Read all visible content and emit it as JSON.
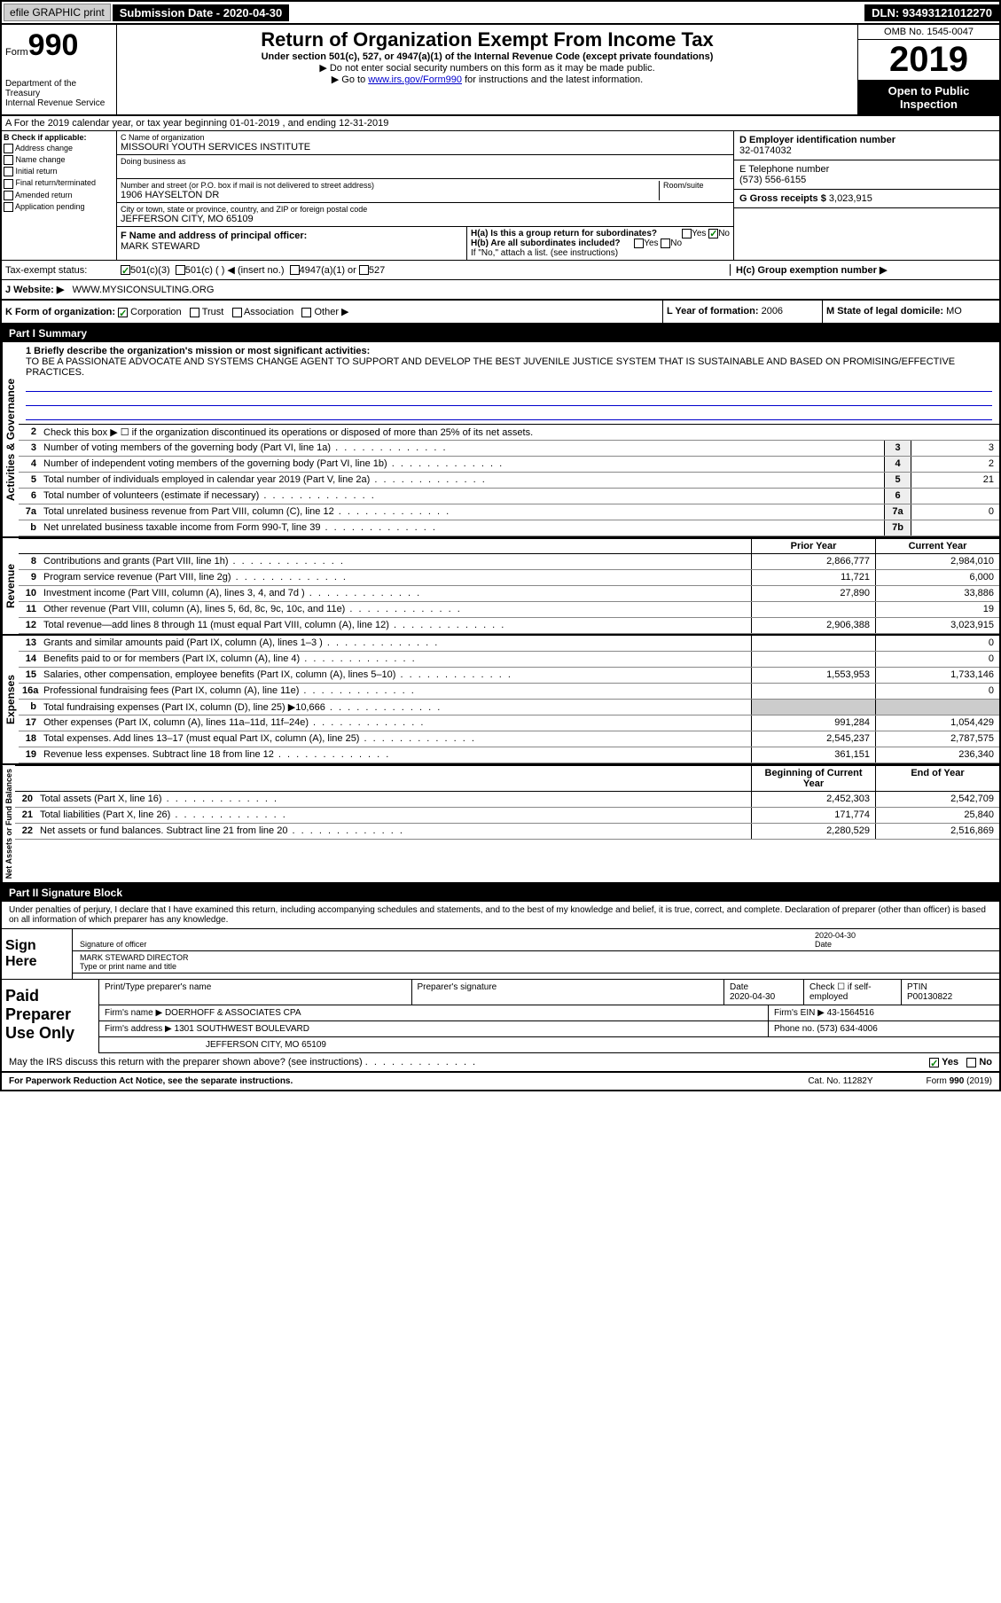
{
  "topbar": {
    "efile": "efile GRAPHIC print",
    "submission": "Submission Date - 2020-04-30",
    "dln": "DLN: 93493121012270"
  },
  "header": {
    "form_prefix": "Form",
    "form_num": "990",
    "dept": "Department of the Treasury\nInternal Revenue Service",
    "title": "Return of Organization Exempt From Income Tax",
    "subtitle": "Under section 501(c), 527, or 4947(a)(1) of the Internal Revenue Code (except private foundations)",
    "note1": "▶ Do not enter social security numbers on this form as it may be made public.",
    "note2": "▶ Go to www.irs.gov/Form990 for instructions and the latest information.",
    "link": "www.irs.gov/Form990",
    "omb": "OMB No. 1545-0047",
    "year": "2019",
    "open": "Open to Public Inspection"
  },
  "period": "A For the 2019 calendar year, or tax year beginning 01-01-2019   , and ending 12-31-2019",
  "sectionB": {
    "hdr": "B Check if applicable:",
    "opts": [
      "Address change",
      "Name change",
      "Initial return",
      "Final return/terminated",
      "Amended return",
      "Application pending"
    ]
  },
  "sectionC": {
    "name_lbl": "C Name of organization",
    "name": "MISSOURI YOUTH SERVICES INSTITUTE",
    "dba_lbl": "Doing business as",
    "addr_lbl": "Number and street (or P.O. box if mail is not delivered to street address)",
    "room_lbl": "Room/suite",
    "addr": "1906 HAYSELTON DR",
    "city_lbl": "City or town, state or province, country, and ZIP or foreign postal code",
    "city": "JEFFERSON CITY, MO  65109"
  },
  "sectionD": {
    "lbl": "D Employer identification number",
    "val": "32-0174032"
  },
  "sectionE": {
    "lbl": "E Telephone number",
    "val": "(573) 556-6155"
  },
  "sectionG": {
    "lbl": "G Gross receipts $",
    "val": "3,023,915"
  },
  "sectionF": {
    "lbl": "F Name and address of principal officer:",
    "val": "MARK STEWARD"
  },
  "sectionH": {
    "a": "H(a)  Is this a group return for subordinates?",
    "b": "H(b)  Are all subordinates included?",
    "b_note": "If \"No,\" attach a list. (see instructions)",
    "c": "H(c)  Group exemption number ▶",
    "yes": "Yes",
    "no": "No"
  },
  "taxExempt": {
    "lbl": "Tax-exempt status:",
    "o1": "501(c)(3)",
    "o2": "501(c) (   ) ◀ (insert no.)",
    "o3": "4947(a)(1) or",
    "o4": "527"
  },
  "sectionJ": {
    "lbl": "J    Website: ▶",
    "val": "WWW.MYSICONSULTING.ORG"
  },
  "sectionK": {
    "lbl": "K Form of organization:",
    "opts": [
      "Corporation",
      "Trust",
      "Association",
      "Other ▶"
    ],
    "l_lbl": "L Year of formation:",
    "l_val": "2006",
    "m_lbl": "M State of legal domicile:",
    "m_val": "MO"
  },
  "part1": {
    "hdr": "Part I      Summary",
    "l1_lbl": "1  Briefly describe the organization's mission or most significant activities:",
    "l1_txt": "TO BE A PASSIONATE ADVOCATE AND SYSTEMS CHANGE AGENT TO SUPPORT AND DEVELOP THE BEST JUVENILE JUSTICE SYSTEM THAT IS SUSTAINABLE AND BASED ON PROMISING/EFFECTIVE PRACTICES.",
    "l2": "Check this box ▶ ☐  if the organization discontinued its operations or disposed of more than 25% of its net assets.",
    "rows_ag": [
      {
        "n": "3",
        "d": "Number of voting members of the governing body (Part VI, line 1a)",
        "b": "3",
        "v": "3"
      },
      {
        "n": "4",
        "d": "Number of independent voting members of the governing body (Part VI, line 1b)",
        "b": "4",
        "v": "2"
      },
      {
        "n": "5",
        "d": "Total number of individuals employed in calendar year 2019 (Part V, line 2a)",
        "b": "5",
        "v": "21"
      },
      {
        "n": "6",
        "d": "Total number of volunteers (estimate if necessary)",
        "b": "6",
        "v": ""
      },
      {
        "n": "7a",
        "d": "Total unrelated business revenue from Part VIII, column (C), line 12",
        "b": "7a",
        "v": "0"
      },
      {
        "n": "b",
        "d": "Net unrelated business taxable income from Form 990-T, line 39",
        "b": "7b",
        "v": ""
      }
    ],
    "col_prior": "Prior Year",
    "col_curr": "Current Year",
    "rows_rev": [
      {
        "n": "8",
        "d": "Contributions and grants (Part VIII, line 1h)",
        "p": "2,866,777",
        "c": "2,984,010"
      },
      {
        "n": "9",
        "d": "Program service revenue (Part VIII, line 2g)",
        "p": "11,721",
        "c": "6,000"
      },
      {
        "n": "10",
        "d": "Investment income (Part VIII, column (A), lines 3, 4, and 7d )",
        "p": "27,890",
        "c": "33,886"
      },
      {
        "n": "11",
        "d": "Other revenue (Part VIII, column (A), lines 5, 6d, 8c, 9c, 10c, and 11e)",
        "p": "",
        "c": "19"
      },
      {
        "n": "12",
        "d": "Total revenue—add lines 8 through 11 (must equal Part VIII, column (A), line 12)",
        "p": "2,906,388",
        "c": "3,023,915"
      }
    ],
    "rows_exp": [
      {
        "n": "13",
        "d": "Grants and similar amounts paid (Part IX, column (A), lines 1–3 )",
        "p": "",
        "c": "0"
      },
      {
        "n": "14",
        "d": "Benefits paid to or for members (Part IX, column (A), line 4)",
        "p": "",
        "c": "0"
      },
      {
        "n": "15",
        "d": "Salaries, other compensation, employee benefits (Part IX, column (A), lines 5–10)",
        "p": "1,553,953",
        "c": "1,733,146"
      },
      {
        "n": "16a",
        "d": "Professional fundraising fees (Part IX, column (A), line 11e)",
        "p": "",
        "c": "0"
      },
      {
        "n": "b",
        "d": "Total fundraising expenses (Part IX, column (D), line 25) ▶10,666",
        "p": "shaded",
        "c": "shaded"
      },
      {
        "n": "17",
        "d": "Other expenses (Part IX, column (A), lines 11a–11d, 11f–24e)",
        "p": "991,284",
        "c": "1,054,429"
      },
      {
        "n": "18",
        "d": "Total expenses. Add lines 13–17 (must equal Part IX, column (A), line 25)",
        "p": "2,545,237",
        "c": "2,787,575"
      },
      {
        "n": "19",
        "d": "Revenue less expenses. Subtract line 18 from line 12",
        "p": "361,151",
        "c": "236,340"
      }
    ],
    "col_beg": "Beginning of Current Year",
    "col_end": "End of Year",
    "rows_net": [
      {
        "n": "20",
        "d": "Total assets (Part X, line 16)",
        "p": "2,452,303",
        "c": "2,542,709"
      },
      {
        "n": "21",
        "d": "Total liabilities (Part X, line 26)",
        "p": "171,774",
        "c": "25,840"
      },
      {
        "n": "22",
        "d": "Net assets or fund balances. Subtract line 21 from line 20",
        "p": "2,280,529",
        "c": "2,516,869"
      }
    ],
    "vert_ag": "Activities & Governance",
    "vert_rev": "Revenue",
    "vert_exp": "Expenses",
    "vert_net": "Net Assets or Fund Balances"
  },
  "part2": {
    "hdr": "Part II     Signature Block",
    "declaration": "Under penalties of perjury, I declare that I have examined this return, including accompanying schedules and statements, and to the best of my knowledge and belief, it is true, correct, and complete. Declaration of preparer (other than officer) is based on all information of which preparer has any knowledge.",
    "sign_here": "Sign Here",
    "sig_officer": "Signature of officer",
    "date": "Date",
    "date_val": "2020-04-30",
    "name_title": "MARK STEWARD  DIRECTOR",
    "type_name": "Type or print name and title",
    "paid": "Paid Preparer Use Only",
    "prep_name_lbl": "Print/Type preparer's name",
    "prep_sig_lbl": "Preparer's signature",
    "prep_date": "2020-04-30",
    "check_se": "Check ☐ if self-employed",
    "ptin_lbl": "PTIN",
    "ptin": "P00130822",
    "firm_name_lbl": "Firm's name    ▶",
    "firm_name": "DOERHOFF & ASSOCIATES CPA",
    "firm_ein_lbl": "Firm's EIN ▶",
    "firm_ein": "43-1564516",
    "firm_addr_lbl": "Firm's address ▶",
    "firm_addr": "1301 SOUTHWEST BOULEVARD",
    "firm_city": "JEFFERSON CITY, MO  65109",
    "phone_lbl": "Phone no.",
    "phone": "(573) 634-4006",
    "discuss": "May the IRS discuss this return with the preparer shown above? (see instructions)",
    "yes": "Yes",
    "no": "No"
  },
  "footer": {
    "pra": "For Paperwork Reduction Act Notice, see the separate instructions.",
    "cat": "Cat. No. 11282Y",
    "form": "Form 990 (2019)"
  }
}
